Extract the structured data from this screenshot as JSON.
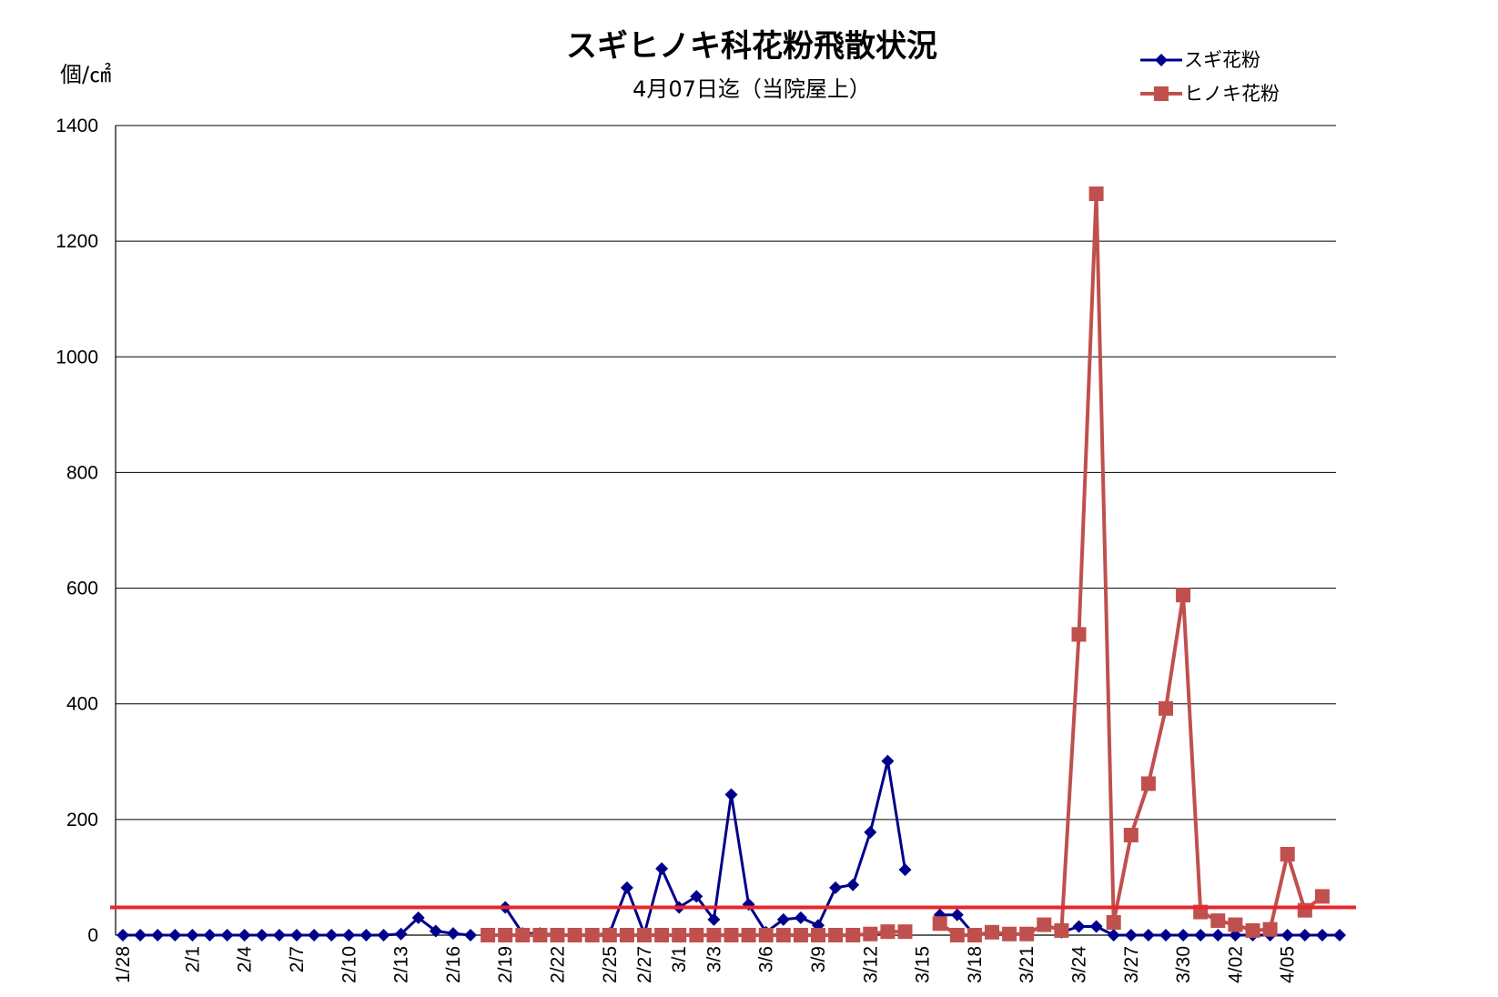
{
  "chart_data": {
    "type": "line",
    "title": "スギヒノキ科花粉飛散状況",
    "subtitle": "4月07日迄（当院屋上）",
    "ylabel": "個/㎠",
    "ylim": [
      0,
      1400
    ],
    "yticks": [
      "0",
      "200",
      "400",
      "600",
      "800",
      "1000",
      "1200",
      "1400"
    ],
    "x_start": "1/28",
    "x_tick_labels": [
      {
        "index": 0,
        "label": "1/28"
      },
      {
        "index": 4,
        "label": "2/1"
      },
      {
        "index": 7,
        "label": "2/4"
      },
      {
        "index": 10,
        "label": "2/7"
      },
      {
        "index": 13,
        "label": "2/10"
      },
      {
        "index": 16,
        "label": "2/13"
      },
      {
        "index": 19,
        "label": "2/16"
      },
      {
        "index": 22,
        "label": "2/19"
      },
      {
        "index": 25,
        "label": "2/22"
      },
      {
        "index": 28,
        "label": "2/25"
      },
      {
        "index": 30,
        "label": "2/27"
      },
      {
        "index": 32,
        "label": "3/1"
      },
      {
        "index": 34,
        "label": "3/3"
      },
      {
        "index": 37,
        "label": "3/6"
      },
      {
        "index": 40,
        "label": "3/9"
      },
      {
        "index": 43,
        "label": "3/12"
      },
      {
        "index": 46,
        "label": "3/15"
      },
      {
        "index": 49,
        "label": "3/18"
      },
      {
        "index": 52,
        "label": "3/21"
      },
      {
        "index": 55,
        "label": "3/24"
      },
      {
        "index": 58,
        "label": "3/27"
      },
      {
        "index": 61,
        "label": "3/30"
      },
      {
        "index": 64,
        "label": "4/02"
      },
      {
        "index": 67,
        "label": "4/05"
      }
    ],
    "grid": true,
    "legend_position": "top-right",
    "threshold_line": {
      "value": 48,
      "color": "#e8262d"
    },
    "series": [
      {
        "name": "スギ花粉",
        "color": "#00008b",
        "marker": "diamond",
        "values": [
          0,
          0,
          0,
          0,
          0,
          0,
          0,
          0,
          0,
          0,
          0,
          0,
          0,
          0,
          0,
          0,
          2,
          30,
          7,
          3,
          0,
          null,
          48,
          3,
          3,
          0,
          0,
          0,
          3,
          82,
          2,
          115,
          48,
          67,
          27,
          243,
          53,
          5,
          27,
          30,
          17,
          82,
          87,
          178,
          301,
          113,
          null,
          35,
          35,
          0,
          null,
          null,
          null,
          null,
          5,
          15,
          15,
          0,
          0,
          0,
          0,
          0,
          0,
          0,
          0,
          0,
          0,
          0,
          0,
          0,
          0
        ]
      },
      {
        "name": "ヒノキ花粉",
        "color": "#c0504d",
        "marker": "square",
        "values": [
          null,
          null,
          null,
          null,
          null,
          null,
          null,
          null,
          null,
          null,
          null,
          null,
          null,
          null,
          null,
          null,
          null,
          null,
          null,
          null,
          null,
          0,
          0,
          0,
          0,
          0,
          0,
          0,
          0,
          0,
          0,
          0,
          0,
          0,
          0,
          0,
          0,
          0,
          0,
          0,
          0,
          0,
          0,
          2,
          6,
          6,
          null,
          20,
          0,
          0,
          5,
          2,
          2,
          18,
          8,
          520,
          1282,
          22,
          173,
          262,
          392,
          588,
          40,
          25,
          18,
          8,
          10,
          140,
          43,
          67
        ]
      }
    ]
  }
}
